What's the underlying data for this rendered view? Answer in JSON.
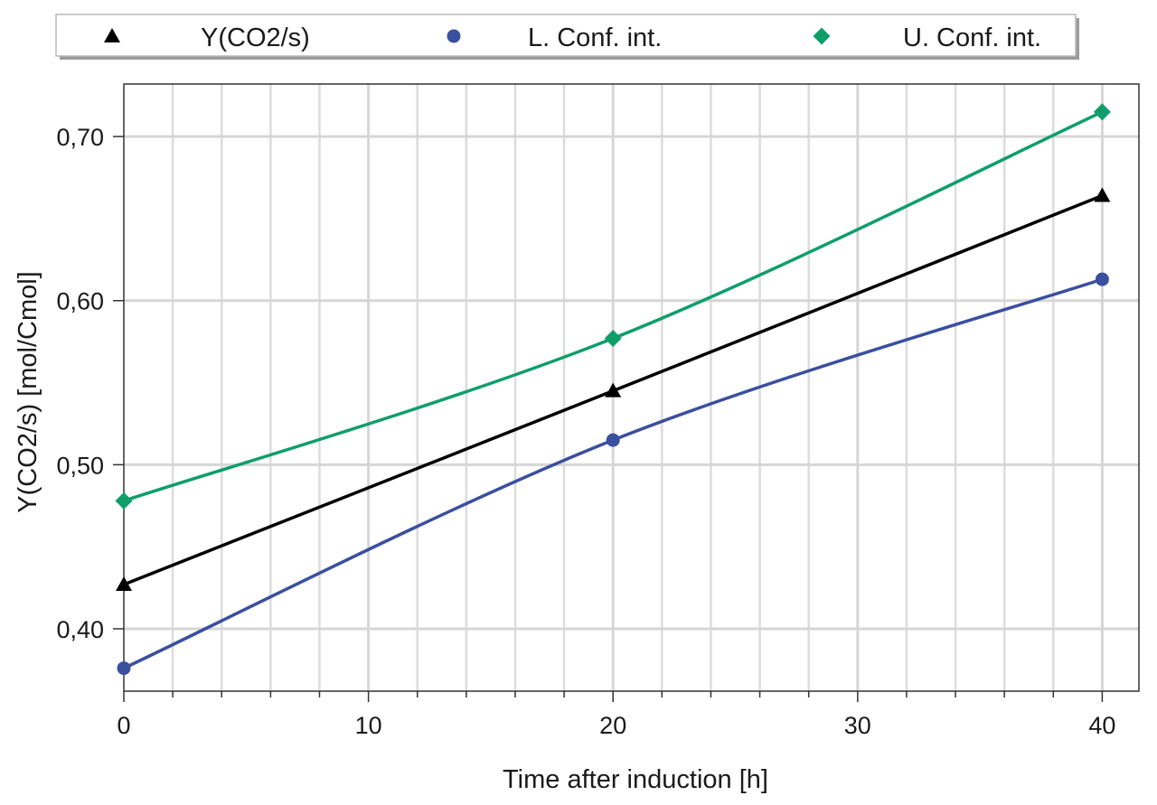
{
  "chart_data": {
    "type": "line",
    "title": "",
    "xlabel": "Time after induction [h]",
    "ylabel": "Y(CO2/s) [mol/Cmol]",
    "xlim": [
      0,
      41.5
    ],
    "ylim": [
      0.362,
      0.732
    ],
    "x_ticks": [
      0,
      10,
      20,
      30,
      40
    ],
    "x_tick_labels": [
      "0",
      "10",
      "20",
      "30",
      "40"
    ],
    "x_minor_step": 2,
    "y_ticks": [
      0.4,
      0.5,
      0.6,
      0.7
    ],
    "y_tick_labels": [
      "0,40",
      "0,50",
      "0,60",
      "0,70"
    ],
    "grid": true,
    "legend_position": "top",
    "series": [
      {
        "name": "Y(CO2/s)",
        "marker": "triangle",
        "color": "#000000",
        "x": [
          0,
          20,
          40
        ],
        "values": [
          0.427,
          0.545,
          0.664
        ]
      },
      {
        "name": "L. Conf. int.",
        "marker": "circle",
        "color": "#3a4f9e",
        "x": [
          0,
          20,
          40
        ],
        "values": [
          0.376,
          0.515,
          0.613
        ]
      },
      {
        "name": "U. Conf. int.",
        "marker": "diamond",
        "color": "#0f9e6a",
        "x": [
          0,
          20,
          40
        ],
        "values": [
          0.478,
          0.577,
          0.715
        ]
      }
    ]
  }
}
